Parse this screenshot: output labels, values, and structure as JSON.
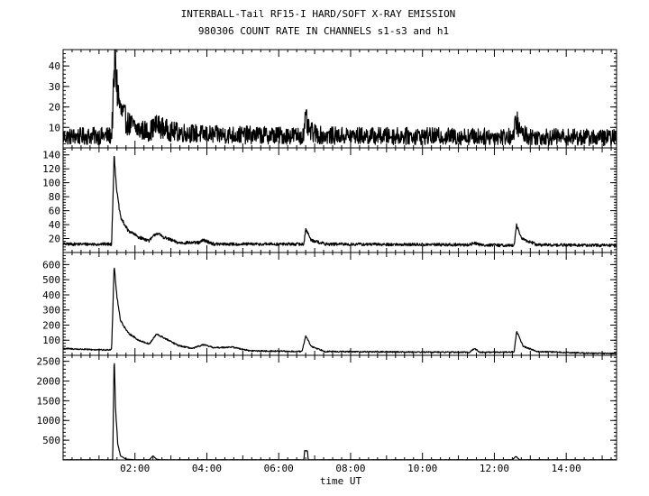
{
  "chart_data": {
    "type": "line",
    "title": "INTERBALL-Tail RF15-I HARD/SOFT X-RAY EMISSION",
    "subtitle": "980306  COUNT RATE IN CHANNELS s1-s3 and h1",
    "xlabel": "time UT",
    "x_ticks": [
      "02:00",
      "04:00",
      "06:00",
      "08:00",
      "10:00",
      "12:00",
      "14:00"
    ],
    "x_range_hours": [
      0.0,
      15.4
    ],
    "panels": [
      {
        "ylim": [
          0,
          48
        ],
        "yticks": [
          10,
          20,
          30,
          40
        ],
        "baseline": 5.5,
        "noise": 2.6,
        "noise_scale": 1.1,
        "min_floor": 0.5,
        "points": [
          [
            0.0,
            5.5
          ],
          [
            1.35,
            6
          ],
          [
            1.45,
            45
          ],
          [
            1.5,
            30
          ],
          [
            1.6,
            18
          ],
          [
            1.8,
            12
          ],
          [
            2.1,
            9
          ],
          [
            2.4,
            8
          ],
          [
            2.6,
            11
          ],
          [
            3.0,
            8
          ],
          [
            4.0,
            6.5
          ],
          [
            6.5,
            6
          ],
          [
            6.7,
            6
          ],
          [
            6.75,
            14
          ],
          [
            6.85,
            8
          ],
          [
            7.2,
            6
          ],
          [
            12.3,
            5.5
          ],
          [
            12.55,
            5.5
          ],
          [
            12.6,
            15
          ],
          [
            12.7,
            8
          ],
          [
            13.0,
            5.5
          ],
          [
            15.4,
            5
          ]
        ]
      },
      {
        "ylim": [
          0,
          150
        ],
        "yticks": [
          20,
          40,
          60,
          80,
          100,
          120,
          140
        ],
        "baseline": 12,
        "noise": 2.0,
        "noise_scale": 0.07,
        "min_floor": 2,
        "points": [
          [
            0.0,
            12
          ],
          [
            1.35,
            12
          ],
          [
            1.42,
            140
          ],
          [
            1.5,
            85
          ],
          [
            1.6,
            50
          ],
          [
            1.8,
            32
          ],
          [
            2.1,
            22
          ],
          [
            2.4,
            17
          ],
          [
            2.6,
            28
          ],
          [
            2.8,
            22
          ],
          [
            3.2,
            14
          ],
          [
            3.8,
            14
          ],
          [
            3.9,
            18
          ],
          [
            4.2,
            12
          ],
          [
            6.5,
            12
          ],
          [
            6.7,
            12
          ],
          [
            6.75,
            34
          ],
          [
            6.9,
            18
          ],
          [
            7.3,
            12
          ],
          [
            11.3,
            11
          ],
          [
            11.45,
            14
          ],
          [
            11.6,
            11
          ],
          [
            12.55,
            10
          ],
          [
            12.62,
            40
          ],
          [
            12.75,
            20
          ],
          [
            13.2,
            11
          ],
          [
            15.4,
            10
          ]
        ]
      },
      {
        "ylim": [
          0,
          680
        ],
        "yticks": [
          100,
          200,
          300,
          400,
          500,
          600
        ],
        "baseline": 40,
        "noise": 4.0,
        "noise_scale": 0.03,
        "min_floor": 5,
        "points": [
          [
            0.0,
            45
          ],
          [
            0.5,
            40
          ],
          [
            1.2,
            35
          ],
          [
            1.35,
            40
          ],
          [
            1.42,
            600
          ],
          [
            1.5,
            380
          ],
          [
            1.6,
            230
          ],
          [
            1.8,
            150
          ],
          [
            2.1,
            100
          ],
          [
            2.4,
            75
          ],
          [
            2.6,
            140
          ],
          [
            2.85,
            110
          ],
          [
            3.2,
            65
          ],
          [
            3.6,
            45
          ],
          [
            3.9,
            70
          ],
          [
            4.2,
            50
          ],
          [
            4.7,
            55
          ],
          [
            5.2,
            30
          ],
          [
            6.5,
            25
          ],
          [
            6.65,
            25
          ],
          [
            6.75,
            130
          ],
          [
            6.9,
            60
          ],
          [
            7.3,
            25
          ],
          [
            11.3,
            20
          ],
          [
            11.45,
            45
          ],
          [
            11.6,
            20
          ],
          [
            12.55,
            22
          ],
          [
            12.62,
            160
          ],
          [
            12.8,
            60
          ],
          [
            13.2,
            25
          ],
          [
            14.5,
            15
          ],
          [
            15.4,
            12
          ]
        ]
      },
      {
        "ylim": [
          0,
          2650
        ],
        "yticks": [
          500,
          1000,
          1500,
          2000,
          2500
        ],
        "baseline": 5,
        "noise": 2.0,
        "noise_scale": 0.2,
        "min_floor": 0,
        "points": [
          [
            0.0,
            5
          ],
          [
            1.38,
            5
          ],
          [
            1.42,
            2600
          ],
          [
            1.46,
            1300
          ],
          [
            1.52,
            400
          ],
          [
            1.6,
            100
          ],
          [
            1.75,
            20
          ],
          [
            2.0,
            5
          ],
          [
            2.4,
            5
          ],
          [
            2.5,
            100
          ],
          [
            2.6,
            20
          ],
          [
            2.7,
            5
          ],
          [
            6.7,
            5
          ],
          [
            6.72,
            230
          ],
          [
            6.8,
            230
          ],
          [
            6.82,
            5
          ],
          [
            12.5,
            5
          ],
          [
            12.6,
            90
          ],
          [
            12.7,
            5
          ],
          [
            15.4,
            5
          ]
        ]
      }
    ]
  }
}
